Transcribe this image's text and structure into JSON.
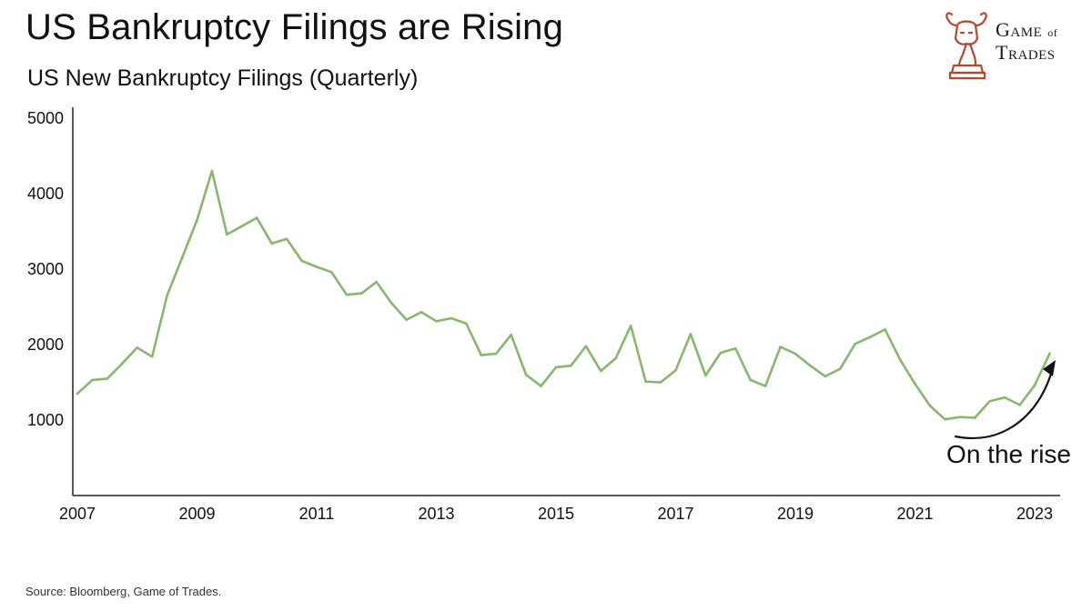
{
  "title": "US Bankruptcy Filings are Rising",
  "subtitle": "US New Bankruptcy Filings (Quarterly)",
  "source": "Source: Bloomberg, Game of Trades.",
  "logo": {
    "line1": "Game",
    "of": "of",
    "line2": "Trades",
    "color": "#b5472e"
  },
  "chart_data": {
    "type": "line",
    "title": "US New Bankruptcy Filings (Quarterly)",
    "xlabel": "",
    "ylabel": "",
    "x_ticks": [
      2007,
      2009,
      2011,
      2013,
      2015,
      2017,
      2019,
      2021,
      2023
    ],
    "y_ticks": [
      1000,
      2000,
      3000,
      4000,
      5000
    ],
    "xlim": [
      2007,
      2023.35
    ],
    "ylim": [
      0,
      5000
    ],
    "grid": false,
    "line_color": "#86b86b",
    "series": [
      {
        "x": [
          2007.0,
          2007.25,
          2007.5,
          2007.75,
          2008.0,
          2008.25,
          2008.5,
          2008.75,
          2009.0,
          2009.25,
          2009.5,
          2009.75,
          2010.0,
          2010.25,
          2010.5,
          2010.75,
          2011.0,
          2011.25,
          2011.5,
          2011.75,
          2012.0,
          2012.25,
          2012.5,
          2012.75,
          2013.0,
          2013.25,
          2013.5,
          2013.75,
          2014.0,
          2014.25,
          2014.5,
          2014.75,
          2015.0,
          2015.25,
          2015.5,
          2015.75,
          2016.0,
          2016.25,
          2016.5,
          2016.75,
          2017.0,
          2017.25,
          2017.5,
          2017.75,
          2018.0,
          2018.25,
          2018.5,
          2018.75,
          2019.0,
          2019.25,
          2019.5,
          2019.75,
          2020.0,
          2020.25,
          2020.5,
          2020.75,
          2021.0,
          2021.25,
          2021.5,
          2021.75,
          2022.0,
          2022.25,
          2022.5,
          2022.75,
          2023.0,
          2023.25
        ],
        "values": [
          1350,
          1530,
          1550,
          1750,
          1960,
          1840,
          2650,
          3150,
          3650,
          4300,
          3460,
          3570,
          3680,
          3340,
          3400,
          3110,
          3030,
          2960,
          2660,
          2680,
          2830,
          2550,
          2330,
          2430,
          2310,
          2350,
          2280,
          1860,
          1880,
          2130,
          1600,
          1450,
          1700,
          1720,
          1980,
          1650,
          1820,
          2250,
          1510,
          1500,
          1660,
          2140,
          1590,
          1890,
          1950,
          1530,
          1450,
          1970,
          1880,
          1720,
          1580,
          1680,
          2010,
          2100,
          2200,
          1800,
          1480,
          1190,
          1010,
          1040,
          1030,
          1250,
          1300,
          1200,
          1460,
          1880
        ]
      }
    ],
    "annotation": "On the rise"
  }
}
